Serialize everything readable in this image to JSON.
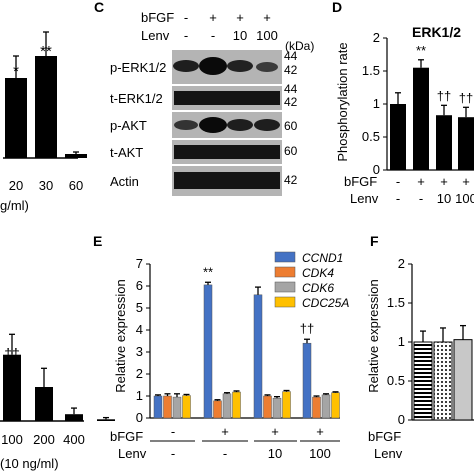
{
  "panel_a_partial": {
    "tick_labels": [
      "20",
      "30",
      "60"
    ],
    "sig": [
      "*",
      "**"
    ],
    "unit_fragment": "g/ml)"
  },
  "panel_c": {
    "label": "C",
    "bfgf_label": "bFGF",
    "lenv_label": "Lenv",
    "bfgf_row": [
      "-",
      "+",
      "+",
      "+"
    ],
    "lenv_row": [
      "-",
      "-",
      "10",
      "100"
    ],
    "kda": "(kDa)",
    "blots": [
      {
        "name": "p-ERK1/2",
        "sizes": [
          "44",
          "42"
        ]
      },
      {
        "name": "t-ERK1/2",
        "sizes": [
          "44",
          "42"
        ]
      },
      {
        "name": "p-AKT",
        "sizes": [
          "60"
        ]
      },
      {
        "name": "t-AKT",
        "sizes": [
          "60"
        ]
      },
      {
        "name": "Actin",
        "sizes": [
          "42"
        ]
      }
    ]
  },
  "panel_d": {
    "label": "D",
    "title": "ERK1/2",
    "ylabel": "Phosphorylation rate",
    "yticks": [
      "0",
      "0.5",
      "1",
      "1.5",
      "2"
    ],
    "bfgf_label": "bFGF",
    "lenv_label": "Lenv",
    "bfgf_row": [
      "-",
      "+",
      "+",
      "+"
    ],
    "lenv_row": [
      "-",
      "-",
      "10",
      "100"
    ],
    "sig": [
      "",
      "**",
      "††",
      "††"
    ]
  },
  "panel_b_partial": {
    "sig": "††",
    "tick_labels": [
      "100",
      "200",
      "400"
    ],
    "unit_fragment": "(10 ng/ml)"
  },
  "panel_e": {
    "label": "E",
    "ylabel": "Relative expression",
    "yticks": [
      "0",
      "1",
      "2",
      "3",
      "4",
      "5",
      "6",
      "7"
    ],
    "bfgf_label": "bFGF",
    "lenv_label": "Lenv",
    "bfgf_row": [
      "-",
      "+",
      "+",
      "+"
    ],
    "lenv_row": [
      "-",
      "-",
      "10",
      "100"
    ],
    "sig": [
      "",
      "**",
      "",
      "††"
    ]
  },
  "panel_f": {
    "label": "F",
    "ylabel": "Relative expression",
    "yticks": [
      "0",
      "0.5",
      "1",
      "1.5",
      "2"
    ],
    "bfgf_label": "bFGF",
    "lenv_label": "Lenv"
  },
  "colors": {
    "ccnd1": "#4472C4",
    "cdk4": "#ED7D31",
    "cdk6": "#A5A5A5",
    "cdc25a": "#FFC000",
    "blot_bg": "#b4b4b4",
    "band": "#141414"
  },
  "chart_data": [
    {
      "type": "bar",
      "panel": "A (partial)",
      "categories": [
        "?",
        "20",
        "30",
        "60"
      ],
      "values": [
        1.9,
        2.0,
        2.55,
        0.1
      ],
      "errors": [
        0.55,
        0.55,
        0.6,
        0.05
      ],
      "xlabel": "g/ml)"
    },
    {
      "type": "bar",
      "panel": "D",
      "title": "ERK1/2",
      "categories": [
        "bFGF - / Lenv -",
        "bFGF + / Lenv -",
        "bFGF + / Lenv 10",
        "bFGF + / Lenv 100"
      ],
      "values": [
        1.0,
        1.55,
        0.83,
        0.8
      ],
      "errors": [
        0.17,
        0.12,
        0.15,
        0.15
      ],
      "ylabel": "Phosphorylation rate",
      "ylim": [
        0,
        2
      ]
    },
    {
      "type": "bar",
      "panel": "B (partial)",
      "categories": [
        "?",
        "100",
        "200",
        "400"
      ],
      "values": [
        1.95,
        1.0,
        0.2,
        0.05
      ],
      "errors": [
        0.6,
        0.55,
        0.18,
        0.05
      ],
      "xlabel": "(10 ng/ml)"
    },
    {
      "type": "bar",
      "panel": "E",
      "categories": [
        "bFGF - / Lenv -",
        "bFGF + / Lenv -",
        "bFGF + / Lenv 10",
        "bFGF + / Lenv 100"
      ],
      "series": [
        {
          "name": "CCND1",
          "values": [
            1.0,
            6.05,
            5.6,
            3.4
          ],
          "errors": [
            0.05,
            0.12,
            0.35,
            0.18
          ]
        },
        {
          "name": "CDK4",
          "values": [
            1.0,
            0.78,
            1.0,
            0.95
          ],
          "errors": [
            0.1,
            0.05,
            0.05,
            0.05
          ]
        },
        {
          "name": "CDK6",
          "values": [
            0.95,
            1.1,
            0.9,
            1.05
          ],
          "errors": [
            0.15,
            0.05,
            0.07,
            0.05
          ]
        },
        {
          "name": "CDC25A",
          "values": [
            1.02,
            1.18,
            1.2,
            1.15
          ],
          "errors": [
            0.05,
            0.05,
            0.05,
            0.04
          ]
        }
      ],
      "ylabel": "Relative expression",
      "ylim": [
        0,
        7
      ]
    },
    {
      "type": "bar",
      "panel": "F (partial)",
      "categories": [
        "-",
        "+",
        "+"
      ],
      "values": [
        1.0,
        1.0,
        1.03
      ],
      "errors": [
        0.14,
        0.18,
        0.18
      ],
      "ylabel": "Relative expression",
      "ylim": [
        0,
        2
      ]
    }
  ]
}
